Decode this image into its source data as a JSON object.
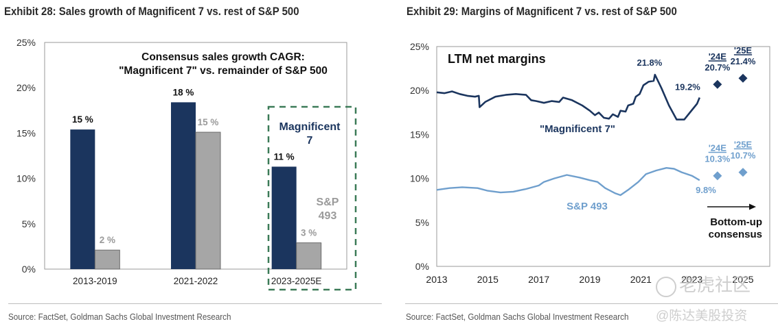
{
  "exhibit_left": {
    "title": "Exhibit 28: Sales growth of Magnificent 7 vs. rest of S&P 500",
    "source": "Source: FactSet, Goldman Sachs Global Investment Research"
  },
  "exhibit_right": {
    "title": "Exhibit 29: Margins of Magnificent 7 vs. rest of S&P 500",
    "source": "Source: FactSet, Goldman Sachs Global Investment Research"
  },
  "watermark": {
    "line1": "老虎社区",
    "line2": "@陈达美股投资"
  },
  "colors": {
    "mag7": "#1b355e",
    "sp493_bar": "#a6a6a6",
    "sp493_line": "#6f9fcd",
    "highlight_box": "#3b7a57",
    "axis": "#888888"
  },
  "chart_data": [
    {
      "type": "bar",
      "title": "Consensus sales growth CAGR:",
      "subtitle": "\"Magnificent 7\" vs. remainder of S&P 500",
      "categories": [
        "2013-2019",
        "2021-2022",
        "2023-2025E"
      ],
      "series": [
        {
          "name": "Magnificent 7",
          "values": [
            15.4,
            18.4,
            11.3
          ],
          "labels": [
            "15 %",
            "18 %",
            "11 %"
          ]
        },
        {
          "name": "S&P 493",
          "values": [
            2.1,
            15.1,
            2.9
          ],
          "labels": [
            "2 %",
            "15 %",
            "3 %"
          ]
        }
      ],
      "yticks": [
        "0%",
        "5%",
        "10%",
        "15%",
        "20%",
        "25%"
      ],
      "ylim": [
        0,
        25
      ],
      "xlabel": "",
      "ylabel": "",
      "grid": false,
      "annotations": {
        "highlight_category": "2023-2025E",
        "mag7_label_line1": "Magnificent",
        "mag7_label_line2": "7",
        "sp_label_line1": "S&P",
        "sp_label_line2": "493"
      }
    },
    {
      "type": "line",
      "title": "LTM net margins",
      "xlim": [
        2013,
        2026
      ],
      "ylim": [
        0,
        25
      ],
      "xticks": [
        "2013",
        "2015",
        "2017",
        "2019",
        "2021",
        "2023",
        "2025"
      ],
      "xtick_values": [
        2013,
        2015,
        2017,
        2019,
        2021,
        2023,
        2025
      ],
      "yticks": [
        "0%",
        "5%",
        "10%",
        "15%",
        "20%",
        "25%"
      ],
      "grid": false,
      "series": [
        {
          "name": "\"Magnificent 7\"",
          "points": [
            [
              2013.0,
              19.8
            ],
            [
              2013.3,
              19.7
            ],
            [
              2013.6,
              19.9
            ],
            [
              2013.9,
              19.6
            ],
            [
              2014.2,
              19.4
            ],
            [
              2014.5,
              19.3
            ],
            [
              2014.65,
              19.4
            ],
            [
              2014.68,
              18.1
            ],
            [
              2014.9,
              18.7
            ],
            [
              2015.3,
              19.3
            ],
            [
              2015.7,
              19.5
            ],
            [
              2016.1,
              19.6
            ],
            [
              2016.5,
              19.5
            ],
            [
              2016.7,
              18.9
            ],
            [
              2016.9,
              18.8
            ],
            [
              2017.2,
              18.6
            ],
            [
              2017.5,
              18.8
            ],
            [
              2017.8,
              18.7
            ],
            [
              2017.95,
              19.2
            ],
            [
              2018.3,
              18.9
            ],
            [
              2018.7,
              18.3
            ],
            [
              2019.0,
              17.7
            ],
            [
              2019.2,
              17.2
            ],
            [
              2019.35,
              17.5
            ],
            [
              2019.55,
              16.9
            ],
            [
              2019.75,
              16.8
            ],
            [
              2019.9,
              17.3
            ],
            [
              2020.1,
              17.0
            ],
            [
              2020.2,
              17.7
            ],
            [
              2020.4,
              17.6
            ],
            [
              2020.5,
              18.3
            ],
            [
              2020.7,
              18.5
            ],
            [
              2020.8,
              19.3
            ],
            [
              2020.95,
              19.6
            ],
            [
              2021.1,
              20.6
            ],
            [
              2021.3,
              21.0
            ],
            [
              2021.5,
              21.1
            ],
            [
              2021.55,
              21.8
            ],
            [
              2021.8,
              20.3
            ],
            [
              2022.1,
              18.3
            ],
            [
              2022.4,
              16.7
            ],
            [
              2022.7,
              16.7
            ],
            [
              2022.95,
              17.6
            ],
            [
              2023.2,
              18.5
            ],
            [
              2023.3,
              19.2
            ]
          ],
          "end_label": "19.2%",
          "peak_label": "21.8%",
          "estimates": [
            {
              "label": "'24E",
              "x": 2024,
              "value": 20.7,
              "value_label": "20.7%"
            },
            {
              "label": "'25E",
              "x": 2025,
              "value": 21.4,
              "value_label": "21.4%"
            }
          ]
        },
        {
          "name": "S&P 493",
          "points": [
            [
              2013.0,
              8.7
            ],
            [
              2013.5,
              8.9
            ],
            [
              2014.0,
              9.0
            ],
            [
              2014.6,
              8.9
            ],
            [
              2015.0,
              8.6
            ],
            [
              2015.5,
              8.4
            ],
            [
              2016.0,
              8.5
            ],
            [
              2016.5,
              8.8
            ],
            [
              2017.0,
              9.2
            ],
            [
              2017.2,
              9.6
            ],
            [
              2017.6,
              10.0
            ],
            [
              2018.1,
              10.4
            ],
            [
              2018.6,
              10.1
            ],
            [
              2019.0,
              9.8
            ],
            [
              2019.3,
              9.6
            ],
            [
              2019.6,
              8.9
            ],
            [
              2020.0,
              8.3
            ],
            [
              2020.2,
              8.1
            ],
            [
              2020.5,
              8.7
            ],
            [
              2020.9,
              9.6
            ],
            [
              2021.2,
              10.5
            ],
            [
              2021.6,
              10.9
            ],
            [
              2022.0,
              11.2
            ],
            [
              2022.3,
              11.1
            ],
            [
              2022.6,
              10.7
            ],
            [
              2023.0,
              10.3
            ],
            [
              2023.3,
              9.8
            ]
          ],
          "end_label": "9.8%",
          "estimates": [
            {
              "label": "'24E",
              "x": 2024,
              "value": 10.3,
              "value_label": "10.3%"
            },
            {
              "label": "'25E",
              "x": 2025,
              "value": 10.7,
              "value_label": "10.7%"
            }
          ]
        }
      ],
      "annotations": {
        "consensus_line1": "Bottom-up",
        "consensus_line2": "consensus"
      }
    }
  ]
}
